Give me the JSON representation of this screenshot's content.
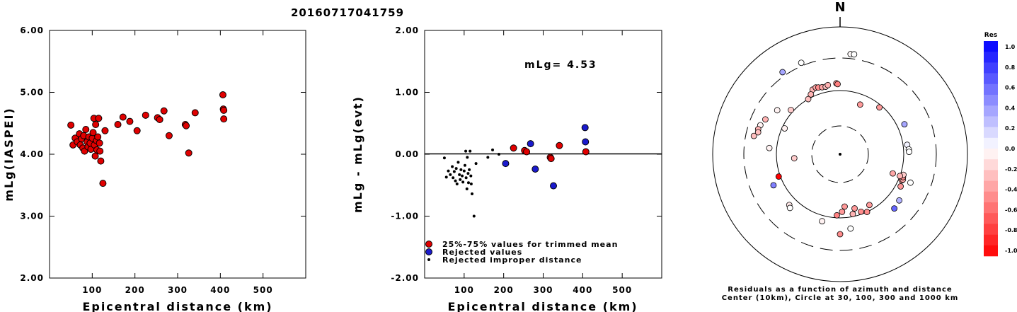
{
  "chart_data": [
    {
      "type": "scatter",
      "title": "20160717041759",
      "xlabel": "Epicentral distance (km)",
      "ylabel": "mLg(IASPEI)",
      "xlim": [
        0,
        600
      ],
      "ylim": [
        2.0,
        6.0
      ],
      "xticks": [
        "100",
        "200",
        "300",
        "400",
        "500"
      ],
      "yticks": [
        "2.00",
        "3.00",
        "4.00",
        "5.00",
        "6.00"
      ],
      "marker_color": "#e00000",
      "points": [
        [
          50,
          4.47
        ],
        [
          55,
          4.15
        ],
        [
          60,
          4.26
        ],
        [
          65,
          4.2
        ],
        [
          70,
          4.33
        ],
        [
          72,
          4.15
        ],
        [
          75,
          4.25
        ],
        [
          78,
          4.1
        ],
        [
          80,
          4.3
        ],
        [
          82,
          4.05
        ],
        [
          85,
          4.4
        ],
        [
          88,
          4.2
        ],
        [
          90,
          4.12
        ],
        [
          92,
          4.28
        ],
        [
          95,
          4.18
        ],
        [
          97,
          4.08
        ],
        [
          100,
          4.26
        ],
        [
          102,
          4.35
        ],
        [
          104,
          4.58
        ],
        [
          105,
          4.15
        ],
        [
          107,
          3.97
        ],
        [
          108,
          4.48
        ],
        [
          110,
          4.22
        ],
        [
          111,
          4.07
        ],
        [
          113,
          4.28
        ],
        [
          115,
          4.58
        ],
        [
          117,
          4.18
        ],
        [
          118,
          4.05
        ],
        [
          120,
          3.89
        ],
        [
          125,
          3.53
        ],
        [
          130,
          4.38
        ],
        [
          160,
          4.48
        ],
        [
          172,
          4.6
        ],
        [
          188,
          4.53
        ],
        [
          205,
          4.38
        ],
        [
          225,
          4.63
        ],
        [
          253,
          4.59
        ],
        [
          258,
          4.56
        ],
        [
          268,
          4.7
        ],
        [
          280,
          4.3
        ],
        [
          318,
          4.48
        ],
        [
          320,
          4.46
        ],
        [
          326,
          4.02
        ],
        [
          341,
          4.67
        ],
        [
          406,
          4.96
        ],
        [
          407,
          4.73
        ],
        [
          408,
          4.71
        ],
        [
          408,
          4.57
        ]
      ]
    },
    {
      "type": "scatter",
      "xlabel": "Epicentral distance (km)",
      "ylabel": "mLg - mLg(evt)",
      "xlim": [
        0,
        600
      ],
      "ylim": [
        -2.0,
        2.0
      ],
      "xticks": [
        "100",
        "200",
        "300",
        "400",
        "500"
      ],
      "yticks": [
        "-2.00",
        "-1.00",
        "0.00",
        "1.00",
        "2.00"
      ],
      "annotation": "mLg= 4.53",
      "legend": [
        "25%-75% values for trimmed mean",
        "Rejected values",
        "Rejected improper distance"
      ],
      "colors": {
        "trimmed": "#e00000",
        "rejected": "#1a1acc",
        "improper": "#000000"
      },
      "series": [
        {
          "name": "25%-75% values for trimmed mean",
          "points": [
            [
              225,
              0.1
            ],
            [
              253,
              0.06
            ],
            [
              258,
              0.04
            ],
            [
              318,
              -0.05
            ],
            [
              320,
              -0.07
            ],
            [
              341,
              0.14
            ],
            [
              408,
              0.04
            ]
          ]
        },
        {
          "name": "Rejected values",
          "points": [
            [
              205,
              -0.15
            ],
            [
              268,
              0.17
            ],
            [
              280,
              -0.24
            ],
            [
              326,
              -0.51
            ],
            [
              406,
              0.43
            ],
            [
              407,
              0.2
            ]
          ]
        },
        {
          "name": "Rejected improper distance",
          "points": [
            [
              50,
              -0.06
            ],
            [
              55,
              -0.37
            ],
            [
              60,
              -0.27
            ],
            [
              65,
              -0.33
            ],
            [
              70,
              -0.2
            ],
            [
              72,
              -0.38
            ],
            [
              75,
              -0.28
            ],
            [
              78,
              -0.43
            ],
            [
              80,
              -0.23
            ],
            [
              82,
              -0.48
            ],
            [
              85,
              -0.13
            ],
            [
              88,
              -0.33
            ],
            [
              90,
              -0.41
            ],
            [
              92,
              -0.25
            ],
            [
              95,
              -0.35
            ],
            [
              97,
              -0.45
            ],
            [
              100,
              -0.27
            ],
            [
              102,
              -0.18
            ],
            [
              104,
              0.05
            ],
            [
              105,
              -0.38
            ],
            [
              107,
              -0.56
            ],
            [
              108,
              -0.05
            ],
            [
              110,
              -0.31
            ],
            [
              111,
              -0.46
            ],
            [
              113,
              -0.25
            ],
            [
              115,
              0.05
            ],
            [
              117,
              -0.35
            ],
            [
              118,
              -0.48
            ],
            [
              120,
              -0.64
            ],
            [
              125,
              -1.0
            ],
            [
              130,
              -0.15
            ],
            [
              160,
              -0.05
            ],
            [
              172,
              0.07
            ],
            [
              188,
              0.0
            ]
          ]
        }
      ]
    },
    {
      "type": "scatter",
      "north_label": "N",
      "caption": [
        "Residuals as a function of azimuth and distance",
        "Center (10km), Circle at 30, 100, 300 and 1000 km"
      ],
      "rings_km": [
        30,
        100,
        300,
        1000
      ],
      "colorbar": {
        "title": "Res",
        "range": [
          -1.0,
          1.0
        ],
        "labels": [
          "1.0",
          "0.8",
          "0.6",
          "0.4",
          "0.2",
          "0.0",
          "-0.2",
          "-0.4",
          "-0.6",
          "-0.8",
          "-1.0"
        ],
        "negative_color": "#ff0000",
        "positive_color": "#0000ff",
        "neutral_color": "#ffffff"
      },
      "stations": [
        {
          "az": 6,
          "dist_km": 400,
          "res": -0.02
        },
        {
          "az": 8,
          "dist_km": 405,
          "res": 0.0
        },
        {
          "az": 337,
          "dist_km": 370,
          "res": 0.0
        },
        {
          "az": 325,
          "dist_km": 390,
          "res": 0.35
        },
        {
          "az": 337,
          "dist_km": 140,
          "res": -0.3
        },
        {
          "az": 340,
          "dist_km": 145,
          "res": -0.35
        },
        {
          "az": 342,
          "dist_km": 140,
          "res": -0.45
        },
        {
          "az": 345,
          "dist_km": 135,
          "res": -0.35
        },
        {
          "az": 348,
          "dist_km": 133,
          "res": -0.25
        },
        {
          "az": 350,
          "dist_km": 140,
          "res": -0.3
        },
        {
          "az": 357,
          "dist_km": 145,
          "res": -0.4
        },
        {
          "az": 358,
          "dist_km": 140,
          "res": -0.5
        },
        {
          "az": 330,
          "dist_km": 100,
          "res": -0.25
        },
        {
          "az": 334,
          "dist_km": 118,
          "res": -0.3
        },
        {
          "az": 312,
          "dist_km": 115,
          "res": -0.2
        },
        {
          "az": 305,
          "dist_km": 180,
          "res": -0.05
        },
        {
          "az": 295,
          "dist_km": 215,
          "res": -0.3
        },
        {
          "az": 290,
          "dist_km": 230,
          "res": -0.05
        },
        {
          "az": 287,
          "dist_km": 235,
          "res": -0.3
        },
        {
          "az": 285,
          "dist_km": 230,
          "res": -0.25
        },
        {
          "az": 282,
          "dist_km": 250,
          "res": -0.25
        },
        {
          "az": 295,
          "dist_km": 95,
          "res": -0.05
        },
        {
          "az": 275,
          "dist_km": 145,
          "res": -0.05
        },
        {
          "az": 265,
          "dist_km": 65,
          "res": -0.2
        },
        {
          "az": 245,
          "dist_km": 160,
          "res": 0.5
        },
        {
          "az": 250,
          "dist_km": 110,
          "res": -1.0
        },
        {
          "az": 225,
          "dist_km": 150,
          "res": -0.1
        },
        {
          "az": 223,
          "dist_km": 160,
          "res": 0.0
        },
        {
          "az": 195,
          "dist_km": 135,
          "res": -0.05
        },
        {
          "az": 180,
          "dist_km": 200,
          "res": -0.45
        },
        {
          "az": 183,
          "dist_km": 95,
          "res": -0.5
        },
        {
          "az": 178,
          "dist_km": 88,
          "res": -0.4
        },
        {
          "az": 175,
          "dist_km": 78,
          "res": -0.4
        },
        {
          "az": 165,
          "dist_km": 85,
          "res": -0.4
        },
        {
          "az": 168,
          "dist_km": 95,
          "res": -0.3
        },
        {
          "az": 160,
          "dist_km": 95,
          "res": -0.45
        },
        {
          "az": 155,
          "dist_km": 100,
          "res": -0.45
        },
        {
          "az": 172,
          "dist_km": 170,
          "res": 0.0
        },
        {
          "az": 150,
          "dist_km": 90,
          "res": -0.4
        },
        {
          "az": 135,
          "dist_km": 180,
          "res": 0.6
        },
        {
          "az": 128,
          "dist_km": 170,
          "res": 0.3
        },
        {
          "az": 118,
          "dist_km": 130,
          "res": -0.4
        },
        {
          "az": 113,
          "dist_km": 120,
          "res": -0.35
        },
        {
          "az": 112,
          "dist_km": 125,
          "res": -0.35
        },
        {
          "az": 110,
          "dist_km": 120,
          "res": -0.45
        },
        {
          "az": 108,
          "dist_km": 118,
          "res": -0.2
        },
        {
          "az": 112,
          "dist_km": 175,
          "res": 0.0
        },
        {
          "az": 110,
          "dist_km": 100,
          "res": -0.3
        },
        {
          "az": 110,
          "dist_km": 85,
          "res": -0.35
        },
        {
          "az": 82,
          "dist_km": 125,
          "res": 0.05
        },
        {
          "az": 86,
          "dist_km": 132,
          "res": 0.0
        },
        {
          "az": 88,
          "dist_km": 133,
          "res": 0.0
        },
        {
          "az": 65,
          "dist_km": 145,
          "res": 0.35
        },
        {
          "az": 40,
          "dist_km": 95,
          "res": -0.4
        },
        {
          "az": 22,
          "dist_km": 80,
          "res": -0.4
        }
      ]
    }
  ]
}
